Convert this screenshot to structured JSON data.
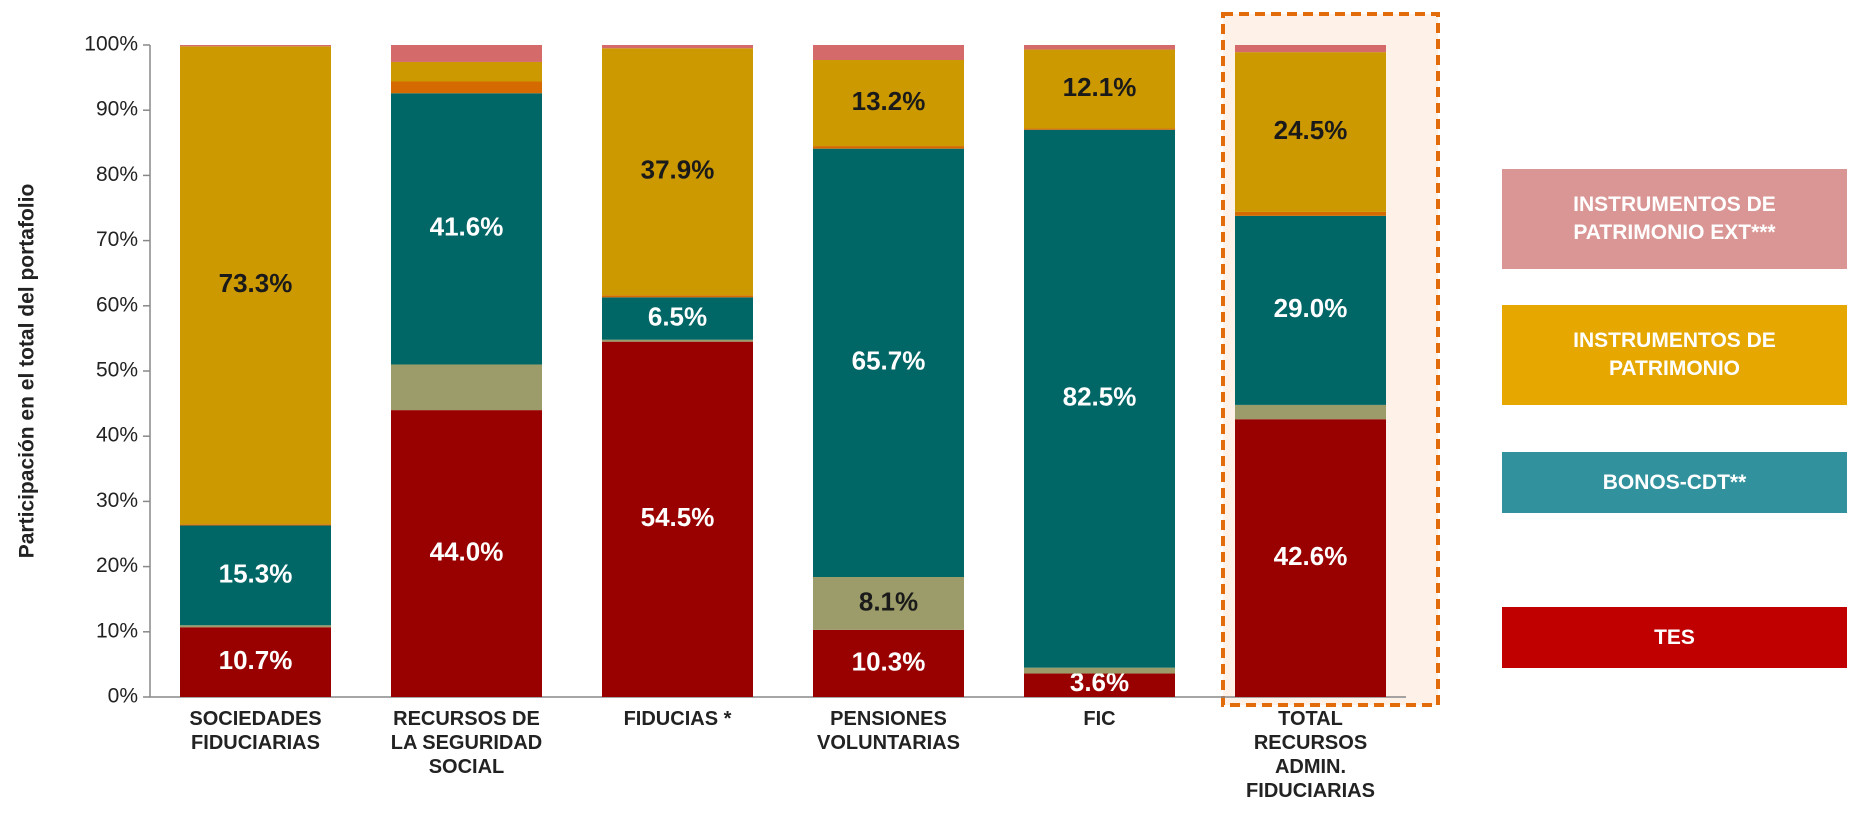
{
  "chart_data": {
    "type": "stacked_bar",
    "y_label": "Participación en el total del portafolio",
    "categories": [
      "SOCIEDADES\nFIDUCIARIAS",
      "RECURSOS DE\nLA SEGURIDAD\nSOCIAL",
      "FIDUCIAS *",
      "PENSIONES\nVOLUNTARIAS",
      "FIC",
      "TOTAL\nRECURSOS\nADMIN.\nFIDUCIARIAS"
    ],
    "series": [
      {
        "name": "TES",
        "color": "#990000",
        "legend_color": "#c00000",
        "label_color": "#ffffff",
        "values": [
          10.7,
          44.0,
          54.5,
          10.3,
          3.6,
          42.6
        ],
        "value_labels": [
          "10.7%",
          "44.0%",
          "54.5%",
          "10.3%",
          "3.6%",
          "42.6%"
        ]
      },
      {
        "name": null,
        "color": "#9c9c6a",
        "label_color": "#1a1a1a",
        "values": [
          0.3,
          7.0,
          0.3,
          8.1,
          0.9,
          2.2
        ],
        "value_labels": [
          null,
          null,
          null,
          "8.1%",
          null,
          null
        ]
      },
      {
        "name": "BONOS-CDT**",
        "color": "#006666",
        "legend_color": "#31929e",
        "label_color": "#ffffff",
        "values": [
          15.3,
          41.6,
          6.5,
          65.7,
          82.5,
          29.0
        ],
        "value_labels": [
          "15.3%",
          "41.6%",
          "6.5%",
          "65.7%",
          "82.5%",
          "29.0%"
        ]
      },
      {
        "name": null,
        "color": "#d46a00",
        "label_color": "#1a1a1a",
        "values": [
          0.2,
          1.8,
          0.3,
          0.4,
          0.2,
          0.6
        ],
        "value_labels": [
          null,
          null,
          null,
          null,
          null,
          null
        ]
      },
      {
        "name": "INSTRUMENTOS DE\nPATRIMONIO",
        "color": "#cc9900",
        "legend_color": "#e6a800",
        "label_color": "#1a1a1a",
        "values": [
          73.3,
          3.0,
          37.9,
          13.2,
          12.1,
          24.5
        ],
        "value_labels": [
          "73.3%",
          null,
          "37.9%",
          "13.2%",
          "12.1%",
          "24.5%"
        ]
      },
      {
        "name": "INSTRUMENTOS DE\nPATRIMONIO EXT***",
        "color": "#d46a6a",
        "legend_color": "#d99694",
        "label_color": "#1a1a1a",
        "values": [
          0.2,
          2.6,
          0.5,
          2.3,
          0.7,
          1.1
        ],
        "value_labels": [
          null,
          null,
          null,
          null,
          null,
          null
        ]
      }
    ],
    "ylim": [
      0,
      100
    ],
    "yticks": [
      {
        "value": 0,
        "label": "0%"
      },
      {
        "value": 10,
        "label": "10%"
      },
      {
        "value": 20,
        "label": "20%"
      },
      {
        "value": 30,
        "label": "30%"
      },
      {
        "value": 40,
        "label": "40%"
      },
      {
        "value": 50,
        "label": "50%"
      },
      {
        "value": 60,
        "label": "60%"
      },
      {
        "value": 70,
        "label": "70%"
      },
      {
        "value": 80,
        "label": "80%"
      },
      {
        "value": 90,
        "label": "90%"
      },
      {
        "value": 100,
        "label": "100%"
      }
    ],
    "grid": false,
    "legend": "right"
  }
}
